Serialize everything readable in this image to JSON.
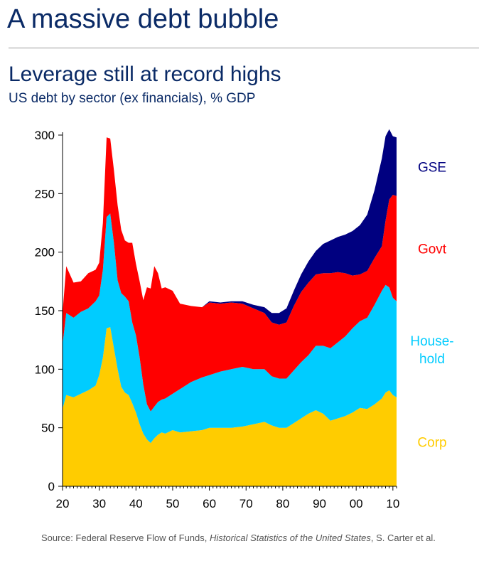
{
  "header": {
    "title": "A massive debt bubble"
  },
  "chart_data": {
    "type": "area",
    "stacked": true,
    "title": "Leverage still at record highs",
    "subtitle": "US debt by sector (ex financials), % GDP",
    "xlabel": "",
    "ylabel": "",
    "xlim": [
      1920,
      2011
    ],
    "ylim": [
      0,
      300
    ],
    "y_ticks": [
      0,
      50,
      100,
      150,
      200,
      250,
      300
    ],
    "x_ticks": [
      1920,
      1930,
      1940,
      1950,
      1960,
      1970,
      1980,
      1990,
      2000,
      2010
    ],
    "x_tick_labels": [
      "20",
      "30",
      "40",
      "50",
      "60",
      "70",
      "80",
      "90",
      "00",
      "10"
    ],
    "legend": "right-inline",
    "grid": false,
    "x": [
      1920,
      1921,
      1923,
      1925,
      1927,
      1929,
      1930,
      1931,
      1932,
      1933,
      1934,
      1935,
      1936,
      1937,
      1938,
      1939,
      1940,
      1941,
      1942,
      1943,
      1944,
      1945,
      1946,
      1947,
      1948,
      1950,
      1952,
      1955,
      1958,
      1960,
      1963,
      1966,
      1969,
      1972,
      1975,
      1977,
      1979,
      1981,
      1983,
      1985,
      1987,
      1989,
      1991,
      1993,
      1995,
      1997,
      1999,
      2001,
      2003,
      2005,
      2007,
      2008,
      2009,
      2010,
      2011
    ],
    "series": [
      {
        "name": "Corp",
        "label": "Corp",
        "color": "#ffcc00",
        "values": [
          66,
          78,
          76,
          79,
          82,
          86,
          95,
          110,
          135,
          136,
          118,
          100,
          85,
          80,
          78,
          71,
          63,
          53,
          45,
          40,
          37,
          41,
          44,
          46,
          45,
          48,
          46,
          47,
          48,
          50,
          50,
          50,
          51,
          53,
          55,
          52,
          50,
          50,
          54,
          58,
          62,
          65,
          62,
          56,
          58,
          60,
          63,
          67,
          66,
          70,
          75,
          80,
          82,
          78,
          76
        ]
      },
      {
        "name": "Household",
        "label": [
          "House-",
          "hold"
        ],
        "color": "#00ccff",
        "values": [
          55,
          70,
          68,
          70,
          70,
          72,
          68,
          75,
          95,
          97,
          90,
          76,
          80,
          82,
          80,
          69,
          66,
          57,
          42,
          30,
          27,
          27,
          28,
          28,
          30,
          31,
          37,
          42,
          45,
          45,
          48,
          50,
          51,
          47,
          45,
          42,
          42,
          42,
          45,
          48,
          50,
          55,
          58,
          62,
          65,
          68,
          72,
          74,
          78,
          85,
          92,
          92,
          88,
          83,
          82
        ]
      },
      {
        "name": "Govt",
        "label": "Govt",
        "color": "#ff0000",
        "values": [
          27,
          40,
          30,
          26,
          30,
          27,
          28,
          40,
          68,
          64,
          62,
          64,
          54,
          48,
          50,
          68,
          61,
          65,
          72,
          100,
          105,
          120,
          110,
          95,
          95,
          88,
          73,
          65,
          60,
          62,
          58,
          57,
          54,
          52,
          48,
          46,
          46,
          48,
          55,
          60,
          62,
          61,
          62,
          64,
          60,
          54,
          45,
          40,
          40,
          40,
          38,
          55,
          75,
          88,
          90
        ]
      },
      {
        "name": "GSE",
        "label": "GSE",
        "color": "#000080",
        "values": [
          0,
          0,
          0,
          0,
          0,
          0,
          0,
          0,
          0,
          0,
          0,
          0,
          0,
          0,
          0,
          0,
          0,
          0,
          0,
          0,
          0,
          0,
          0,
          0,
          0,
          0,
          0,
          0,
          0,
          1,
          1,
          1,
          2,
          3,
          5,
          8,
          10,
          12,
          13,
          15,
          18,
          20,
          25,
          28,
          30,
          33,
          38,
          42,
          48,
          58,
          75,
          72,
          60,
          50,
          50
        ]
      }
    ]
  },
  "source": {
    "prefix": "Source: Federal Reserve Flow of Funds, ",
    "italic": "Historical Statistics of the United States",
    "suffix": ", S. Carter et al."
  }
}
